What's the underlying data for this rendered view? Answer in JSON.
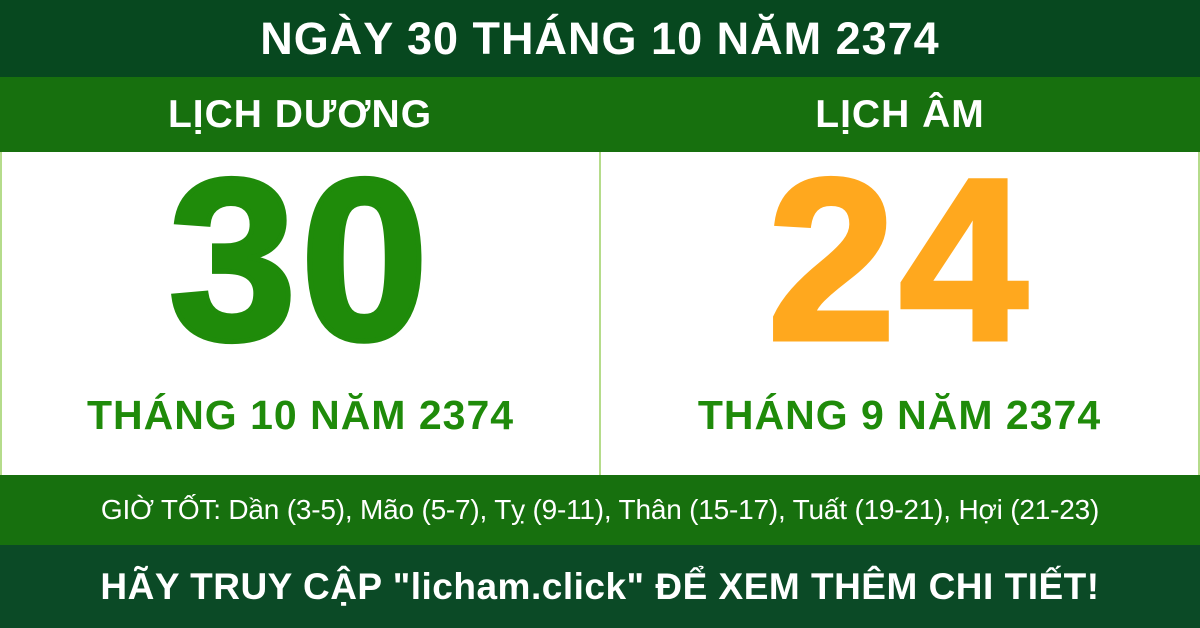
{
  "banner": {
    "title": "NGÀY 30 THÁNG 10 NĂM 2374"
  },
  "calendars": {
    "solar": {
      "header": "LỊCH DƯƠNG",
      "day": "30",
      "month_year": "THÁNG 10 NĂM 2374"
    },
    "lunar": {
      "header": "LỊCH ÂM",
      "day": "24",
      "month_year": "THÁNG 9 NĂM 2374"
    }
  },
  "good_hours": {
    "text": "GIỜ TỐT: Dần (3-5), Mão (5-7), Tỵ (9-11), Thân (15-17), Tuất (19-21), Hợi (21-23)"
  },
  "footer": {
    "cta": "HÃY TRUY CẬP \"licham.click\" ĐỂ XEM THÊM CHI TIẾT!",
    "website": "licham.click"
  },
  "colors": {
    "dark_green_bar": "#07481f",
    "green_bar": "#17700e",
    "solar_day_green": "#1f8b0a",
    "lunar_day_orange": "#ffa81e",
    "month_label_green": "#1f8b0a",
    "divider_light_green": "#b5dc8b",
    "footer_dark_green": "#0b4a26",
    "text_white": "#ffffff"
  }
}
